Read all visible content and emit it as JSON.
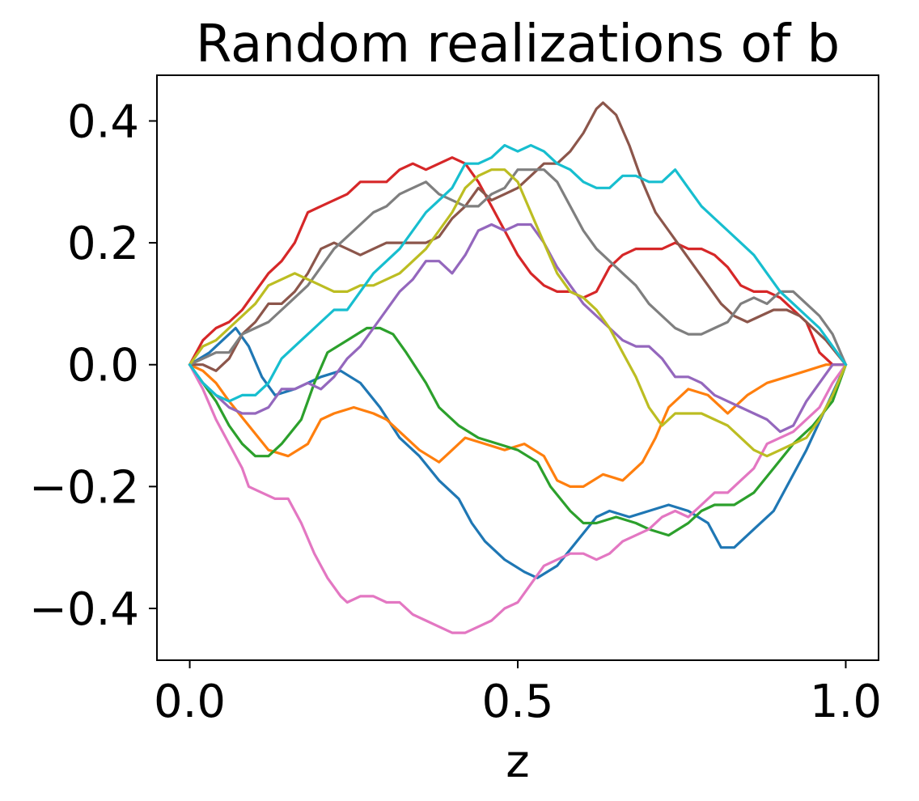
{
  "chart_data": {
    "type": "line",
    "title": "Random realizations of b",
    "xlabel": "z",
    "ylabel": "",
    "xlim": [
      -0.05,
      1.05
    ],
    "ylim": [
      -0.485,
      0.475
    ],
    "xticks": [
      0.0,
      0.5,
      1.0
    ],
    "xtick_labels": [
      "0.0",
      "0.5",
      "1.0"
    ],
    "yticks": [
      -0.4,
      -0.2,
      0.0,
      0.2,
      0.4
    ],
    "ytick_labels": [
      "−0.4",
      "−0.2",
      "0.0",
      "0.2",
      "0.4"
    ],
    "grid": false,
    "legend": "none",
    "series": [
      {
        "color": "#1f77b4",
        "x": [
          0,
          0.03,
          0.05,
          0.07,
          0.09,
          0.11,
          0.13,
          0.16,
          0.2,
          0.23,
          0.26,
          0.29,
          0.32,
          0.35,
          0.38,
          0.41,
          0.43,
          0.45,
          0.48,
          0.51,
          0.53,
          0.56,
          0.59,
          0.62,
          0.64,
          0.67,
          0.7,
          0.73,
          0.76,
          0.79,
          0.81,
          0.83,
          0.86,
          0.89,
          0.91,
          0.94,
          0.97,
          1.0
        ],
        "y": [
          0,
          0.02,
          0.04,
          0.06,
          0.03,
          -0.02,
          -0.05,
          -0.04,
          -0.02,
          -0.01,
          -0.03,
          -0.07,
          -0.12,
          -0.15,
          -0.19,
          -0.22,
          -0.26,
          -0.29,
          -0.32,
          -0.34,
          -0.35,
          -0.33,
          -0.29,
          -0.25,
          -0.24,
          -0.25,
          -0.24,
          -0.23,
          -0.24,
          -0.26,
          -0.3,
          -0.3,
          -0.27,
          -0.24,
          -0.2,
          -0.14,
          -0.07,
          0
        ]
      },
      {
        "color": "#ff7f0e",
        "x": [
          0,
          0.02,
          0.04,
          0.06,
          0.09,
          0.12,
          0.15,
          0.18,
          0.2,
          0.22,
          0.25,
          0.28,
          0.3,
          0.33,
          0.35,
          0.38,
          0.4,
          0.42,
          0.45,
          0.48,
          0.51,
          0.54,
          0.56,
          0.58,
          0.6,
          0.63,
          0.66,
          0.69,
          0.71,
          0.73,
          0.76,
          0.79,
          0.82,
          0.85,
          0.88,
          0.91,
          0.94,
          0.97,
          1.0
        ],
        "y": [
          0,
          -0.01,
          -0.03,
          -0.06,
          -0.1,
          -0.14,
          -0.15,
          -0.13,
          -0.09,
          -0.08,
          -0.07,
          -0.08,
          -0.09,
          -0.12,
          -0.14,
          -0.16,
          -0.14,
          -0.12,
          -0.13,
          -0.14,
          -0.13,
          -0.15,
          -0.19,
          -0.2,
          -0.2,
          -0.18,
          -0.19,
          -0.16,
          -0.12,
          -0.07,
          -0.04,
          -0.05,
          -0.08,
          -0.05,
          -0.03,
          -0.02,
          -0.01,
          0.0,
          0
        ]
      },
      {
        "color": "#2ca02c",
        "x": [
          0,
          0.02,
          0.04,
          0.06,
          0.08,
          0.1,
          0.12,
          0.14,
          0.17,
          0.19,
          0.21,
          0.24,
          0.27,
          0.29,
          0.31,
          0.33,
          0.36,
          0.38,
          0.41,
          0.44,
          0.47,
          0.5,
          0.53,
          0.55,
          0.58,
          0.6,
          0.62,
          0.65,
          0.68,
          0.7,
          0.73,
          0.76,
          0.78,
          0.8,
          0.83,
          0.86,
          0.89,
          0.92,
          0.95,
          0.98,
          1.0
        ],
        "y": [
          0,
          -0.03,
          -0.06,
          -0.1,
          -0.13,
          -0.15,
          -0.15,
          -0.13,
          -0.09,
          -0.03,
          0.02,
          0.04,
          0.06,
          0.06,
          0.05,
          0.02,
          -0.03,
          -0.07,
          -0.1,
          -0.12,
          -0.13,
          -0.14,
          -0.16,
          -0.2,
          -0.24,
          -0.26,
          -0.26,
          -0.25,
          -0.26,
          -0.27,
          -0.28,
          -0.26,
          -0.24,
          -0.23,
          -0.23,
          -0.21,
          -0.17,
          -0.13,
          -0.1,
          -0.06,
          0
        ]
      },
      {
        "color": "#d62728",
        "x": [
          0,
          0.02,
          0.04,
          0.06,
          0.08,
          0.1,
          0.12,
          0.14,
          0.16,
          0.18,
          0.2,
          0.22,
          0.24,
          0.26,
          0.28,
          0.3,
          0.32,
          0.34,
          0.36,
          0.38,
          0.4,
          0.42,
          0.44,
          0.46,
          0.48,
          0.5,
          0.52,
          0.54,
          0.56,
          0.58,
          0.6,
          0.62,
          0.64,
          0.66,
          0.68,
          0.7,
          0.72,
          0.74,
          0.76,
          0.78,
          0.8,
          0.82,
          0.84,
          0.86,
          0.88,
          0.9,
          0.92,
          0.94,
          0.96,
          0.98,
          1.0
        ],
        "y": [
          0,
          0.04,
          0.06,
          0.07,
          0.09,
          0.12,
          0.15,
          0.17,
          0.2,
          0.25,
          0.26,
          0.27,
          0.28,
          0.3,
          0.3,
          0.3,
          0.32,
          0.33,
          0.32,
          0.33,
          0.34,
          0.33,
          0.3,
          0.26,
          0.22,
          0.18,
          0.15,
          0.13,
          0.12,
          0.12,
          0.11,
          0.12,
          0.16,
          0.18,
          0.19,
          0.19,
          0.19,
          0.2,
          0.19,
          0.19,
          0.18,
          0.16,
          0.13,
          0.12,
          0.12,
          0.11,
          0.09,
          0.07,
          0.02,
          0.0,
          0
        ]
      },
      {
        "color": "#9467bd",
        "x": [
          0,
          0.02,
          0.04,
          0.06,
          0.08,
          0.1,
          0.12,
          0.14,
          0.16,
          0.18,
          0.2,
          0.22,
          0.24,
          0.26,
          0.28,
          0.3,
          0.32,
          0.34,
          0.36,
          0.38,
          0.4,
          0.42,
          0.44,
          0.46,
          0.48,
          0.5,
          0.52,
          0.54,
          0.56,
          0.58,
          0.6,
          0.62,
          0.64,
          0.66,
          0.68,
          0.7,
          0.72,
          0.74,
          0.76,
          0.78,
          0.8,
          0.82,
          0.84,
          0.86,
          0.88,
          0.9,
          0.92,
          0.94,
          0.96,
          0.98,
          1.0
        ],
        "y": [
          0,
          -0.03,
          -0.05,
          -0.07,
          -0.08,
          -0.08,
          -0.07,
          -0.04,
          -0.04,
          -0.03,
          -0.04,
          -0.02,
          0.01,
          0.03,
          0.06,
          0.09,
          0.12,
          0.14,
          0.17,
          0.17,
          0.15,
          0.18,
          0.22,
          0.23,
          0.22,
          0.23,
          0.23,
          0.2,
          0.16,
          0.13,
          0.1,
          0.08,
          0.06,
          0.04,
          0.03,
          0.03,
          0.01,
          -0.02,
          -0.02,
          -0.03,
          -0.05,
          -0.06,
          -0.07,
          -0.08,
          -0.09,
          -0.11,
          -0.1,
          -0.06,
          -0.03,
          0.0,
          0
        ]
      },
      {
        "color": "#8c564b",
        "x": [
          0,
          0.02,
          0.04,
          0.06,
          0.08,
          0.1,
          0.12,
          0.14,
          0.16,
          0.18,
          0.2,
          0.22,
          0.24,
          0.26,
          0.28,
          0.3,
          0.32,
          0.34,
          0.36,
          0.38,
          0.4,
          0.42,
          0.44,
          0.46,
          0.48,
          0.5,
          0.52,
          0.54,
          0.56,
          0.58,
          0.6,
          0.62,
          0.63,
          0.65,
          0.67,
          0.69,
          0.71,
          0.73,
          0.75,
          0.77,
          0.79,
          0.81,
          0.83,
          0.85,
          0.87,
          0.89,
          0.91,
          0.93,
          0.95,
          0.97,
          1.0
        ],
        "y": [
          0,
          0.0,
          -0.01,
          0.01,
          0.05,
          0.07,
          0.1,
          0.1,
          0.12,
          0.15,
          0.19,
          0.2,
          0.19,
          0.18,
          0.19,
          0.2,
          0.2,
          0.2,
          0.2,
          0.21,
          0.24,
          0.26,
          0.29,
          0.27,
          0.28,
          0.29,
          0.31,
          0.33,
          0.33,
          0.35,
          0.38,
          0.42,
          0.43,
          0.41,
          0.36,
          0.3,
          0.25,
          0.22,
          0.19,
          0.16,
          0.13,
          0.1,
          0.08,
          0.07,
          0.08,
          0.09,
          0.09,
          0.08,
          0.06,
          0.04,
          0
        ]
      },
      {
        "color": "#e377c2",
        "x": [
          0,
          0.02,
          0.04,
          0.06,
          0.08,
          0.09,
          0.11,
          0.13,
          0.15,
          0.17,
          0.19,
          0.21,
          0.23,
          0.24,
          0.26,
          0.28,
          0.3,
          0.32,
          0.34,
          0.36,
          0.38,
          0.4,
          0.42,
          0.44,
          0.46,
          0.48,
          0.5,
          0.52,
          0.54,
          0.56,
          0.58,
          0.6,
          0.62,
          0.64,
          0.66,
          0.68,
          0.7,
          0.72,
          0.74,
          0.76,
          0.78,
          0.8,
          0.82,
          0.84,
          0.86,
          0.88,
          0.9,
          0.92,
          0.94,
          0.96,
          0.98,
          1.0
        ],
        "y": [
          0,
          -0.04,
          -0.09,
          -0.13,
          -0.17,
          -0.2,
          -0.21,
          -0.22,
          -0.22,
          -0.26,
          -0.31,
          -0.35,
          -0.38,
          -0.39,
          -0.38,
          -0.38,
          -0.39,
          -0.39,
          -0.41,
          -0.42,
          -0.43,
          -0.44,
          -0.44,
          -0.43,
          -0.42,
          -0.4,
          -0.39,
          -0.36,
          -0.33,
          -0.32,
          -0.31,
          -0.31,
          -0.32,
          -0.31,
          -0.29,
          -0.28,
          -0.27,
          -0.25,
          -0.24,
          -0.25,
          -0.23,
          -0.21,
          -0.21,
          -0.19,
          -0.17,
          -0.13,
          -0.12,
          -0.11,
          -0.09,
          -0.07,
          -0.03,
          0
        ]
      },
      {
        "color": "#7f7f7f",
        "x": [
          0,
          0.02,
          0.04,
          0.06,
          0.08,
          0.1,
          0.12,
          0.14,
          0.16,
          0.18,
          0.2,
          0.22,
          0.24,
          0.26,
          0.28,
          0.3,
          0.32,
          0.34,
          0.36,
          0.38,
          0.4,
          0.42,
          0.44,
          0.46,
          0.48,
          0.5,
          0.52,
          0.54,
          0.56,
          0.58,
          0.6,
          0.62,
          0.64,
          0.66,
          0.68,
          0.7,
          0.72,
          0.74,
          0.76,
          0.78,
          0.8,
          0.82,
          0.84,
          0.86,
          0.88,
          0.9,
          0.92,
          0.94,
          0.96,
          0.98,
          1.0
        ],
        "y": [
          0,
          0.01,
          0.02,
          0.02,
          0.05,
          0.06,
          0.07,
          0.09,
          0.11,
          0.13,
          0.16,
          0.19,
          0.21,
          0.23,
          0.25,
          0.26,
          0.28,
          0.29,
          0.3,
          0.28,
          0.27,
          0.26,
          0.26,
          0.28,
          0.29,
          0.32,
          0.32,
          0.32,
          0.3,
          0.26,
          0.22,
          0.19,
          0.17,
          0.15,
          0.13,
          0.1,
          0.08,
          0.06,
          0.05,
          0.05,
          0.06,
          0.07,
          0.1,
          0.11,
          0.1,
          0.12,
          0.12,
          0.1,
          0.08,
          0.05,
          0
        ]
      },
      {
        "color": "#bcbd22",
        "x": [
          0,
          0.02,
          0.04,
          0.06,
          0.08,
          0.1,
          0.12,
          0.14,
          0.16,
          0.18,
          0.2,
          0.22,
          0.24,
          0.26,
          0.28,
          0.3,
          0.32,
          0.34,
          0.36,
          0.38,
          0.4,
          0.42,
          0.44,
          0.46,
          0.48,
          0.5,
          0.52,
          0.54,
          0.56,
          0.58,
          0.6,
          0.62,
          0.64,
          0.66,
          0.68,
          0.7,
          0.72,
          0.74,
          0.76,
          0.78,
          0.8,
          0.82,
          0.84,
          0.86,
          0.88,
          0.9,
          0.92,
          0.94,
          0.96,
          0.98,
          1.0
        ],
        "y": [
          0,
          0.03,
          0.04,
          0.06,
          0.08,
          0.1,
          0.13,
          0.14,
          0.15,
          0.14,
          0.13,
          0.12,
          0.12,
          0.13,
          0.13,
          0.14,
          0.15,
          0.17,
          0.19,
          0.22,
          0.25,
          0.29,
          0.31,
          0.32,
          0.32,
          0.3,
          0.25,
          0.2,
          0.15,
          0.12,
          0.11,
          0.09,
          0.06,
          0.02,
          -0.02,
          -0.07,
          -0.1,
          -0.08,
          -0.08,
          -0.08,
          -0.09,
          -0.1,
          -0.12,
          -0.14,
          -0.15,
          -0.14,
          -0.13,
          -0.12,
          -0.09,
          -0.05,
          0
        ]
      },
      {
        "color": "#17becf",
        "x": [
          0,
          0.02,
          0.04,
          0.06,
          0.08,
          0.1,
          0.12,
          0.14,
          0.16,
          0.18,
          0.2,
          0.22,
          0.24,
          0.26,
          0.28,
          0.3,
          0.32,
          0.34,
          0.36,
          0.38,
          0.4,
          0.42,
          0.44,
          0.46,
          0.48,
          0.5,
          0.52,
          0.54,
          0.56,
          0.58,
          0.6,
          0.62,
          0.64,
          0.66,
          0.68,
          0.7,
          0.72,
          0.74,
          0.76,
          0.78,
          0.8,
          0.82,
          0.84,
          0.86,
          0.88,
          0.9,
          0.92,
          0.94,
          0.96,
          0.98,
          1.0
        ],
        "y": [
          0,
          -0.03,
          -0.05,
          -0.06,
          -0.05,
          -0.05,
          -0.03,
          0.01,
          0.03,
          0.05,
          0.07,
          0.09,
          0.09,
          0.12,
          0.15,
          0.17,
          0.19,
          0.22,
          0.25,
          0.27,
          0.29,
          0.33,
          0.33,
          0.34,
          0.36,
          0.35,
          0.36,
          0.35,
          0.33,
          0.32,
          0.3,
          0.29,
          0.29,
          0.31,
          0.31,
          0.3,
          0.3,
          0.32,
          0.29,
          0.26,
          0.24,
          0.22,
          0.2,
          0.18,
          0.15,
          0.12,
          0.1,
          0.08,
          0.06,
          0.03,
          0
        ]
      }
    ]
  }
}
